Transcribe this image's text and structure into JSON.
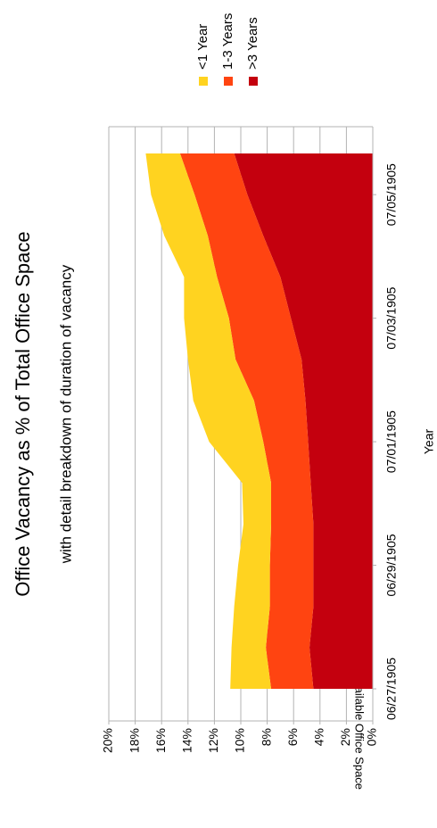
{
  "chart_data": {
    "type": "area",
    "stacked": true,
    "title": "Office Vacancy as % of Total Office Space",
    "subtitle": "with detail breakdown of duration of vacancy",
    "xlabel": "Year",
    "ylabel": "% of Total Available Office Space",
    "ylim": [
      0,
      20
    ],
    "yticks": [
      "0%",
      "2%",
      "4%",
      "6%",
      "8%",
      "10%",
      "12%",
      "14%",
      "16%",
      "18%",
      "20%"
    ],
    "x_tick_labels": [
      "06/27/1905",
      "06/29/1905",
      "07/01/1905",
      "07/03/1905",
      "07/05/1905"
    ],
    "x_start": 0,
    "x_end": 13,
    "x_tick_positions": [
      0,
      3,
      6,
      9,
      12
    ],
    "grid": true,
    "legend_position": "top-right",
    "series": [
      {
        "name": ">3 Years",
        "color": "#c4000e",
        "values": [
          4.5,
          4.8,
          4.5,
          4.5,
          4.5,
          4.7,
          4.9,
          5.1,
          5.4,
          6.2,
          7.0,
          8.3,
          9.5,
          10.5
        ]
      },
      {
        "name": "1-3 Years",
        "color": "#ff4411",
        "values": [
          3.2,
          3.3,
          3.3,
          3.3,
          3.2,
          3.0,
          3.4,
          3.9,
          5.0,
          4.7,
          4.8,
          4.2,
          4.0,
          4.1
        ]
      },
      {
        "name": "<1 Year",
        "color": "#ffd320",
        "values": [
          3.1,
          2.6,
          2.7,
          2.4,
          2.1,
          2.2,
          4.1,
          4.6,
          3.6,
          3.4,
          2.5,
          3.3,
          3.3,
          2.6
        ]
      }
    ]
  }
}
